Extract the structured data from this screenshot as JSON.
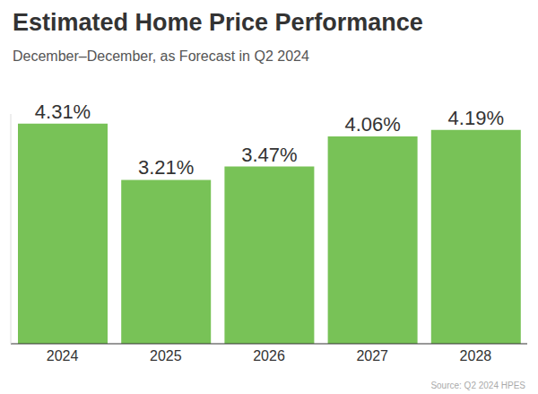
{
  "chart_data": {
    "type": "bar",
    "title": "Estimated Home Price Performance",
    "subtitle": "December–December, as Forecast in Q2 2024",
    "source": "Source: Q2 2024 HPES",
    "categories": [
      "2024",
      "2025",
      "2026",
      "2027",
      "2028"
    ],
    "values": [
      4.31,
      3.21,
      3.47,
      4.06,
      4.19
    ],
    "value_labels": [
      "4.31%",
      "3.21%",
      "3.47%",
      "4.06%",
      "4.19%"
    ],
    "color": "#78c257",
    "ylim": [
      0,
      4.5
    ],
    "grid": false,
    "data_labels": true,
    "tick_labels": "x"
  }
}
